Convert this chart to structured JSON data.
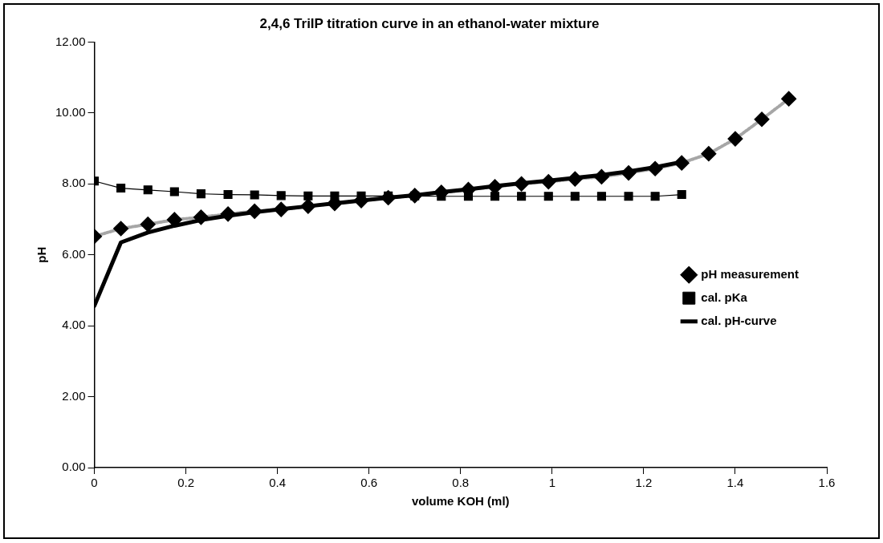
{
  "chart_data": {
    "type": "line",
    "title": "2,4,6 TriIP titration curve in an ethanol-water mixture",
    "xlabel": "volume KOH (ml)",
    "ylabel": "pH",
    "x": [
      0,
      0.058,
      0.117,
      0.175,
      0.233,
      0.292,
      0.35,
      0.408,
      0.467,
      0.525,
      0.583,
      0.642,
      0.7,
      0.758,
      0.817,
      0.875,
      0.933,
      0.992,
      1.05,
      1.108,
      1.167,
      1.225,
      1.283,
      1.342,
      1.4,
      1.458,
      1.517
    ],
    "series": [
      {
        "name": "pH measurement",
        "color": "#000000",
        "marker": "diamond",
        "line_style": "dotted",
        "values": [
          6.52,
          6.74,
          6.86,
          6.99,
          7.06,
          7.15,
          7.23,
          7.28,
          7.37,
          7.45,
          7.53,
          7.61,
          7.67,
          7.76,
          7.84,
          7.92,
          8.0,
          8.06,
          8.14,
          8.2,
          8.31,
          8.43,
          8.59,
          8.85,
          9.27,
          9.82,
          10.4
        ]
      },
      {
        "name": "cal. pKa",
        "color": "#000000",
        "marker": "square",
        "values": [
          8.08,
          7.88,
          7.83,
          7.78,
          7.72,
          7.7,
          7.69,
          7.67,
          7.66,
          7.66,
          7.66,
          7.66,
          7.66,
          7.65,
          7.65,
          7.65,
          7.65,
          7.65,
          7.65,
          7.65,
          7.65,
          7.65,
          7.7,
          null,
          null,
          null,
          null
        ]
      },
      {
        "name": "cal. pH-curve",
        "color": "#000000",
        "marker": "none",
        "values": [
          4.56,
          6.35,
          6.63,
          6.82,
          6.98,
          7.1,
          7.2,
          7.29,
          7.37,
          7.45,
          7.53,
          7.61,
          7.68,
          7.77,
          7.85,
          7.94,
          8.02,
          8.09,
          8.17,
          8.25,
          8.35,
          8.47,
          8.62,
          null,
          null,
          null,
          null
        ]
      }
    ],
    "xlim": [
      0,
      1.6
    ],
    "xticks": [
      0,
      0.2,
      0.4,
      0.6,
      0.8,
      1,
      1.2,
      1.4,
      1.6
    ],
    "ylim": [
      0,
      12
    ],
    "yticks": [
      {
        "value": 0,
        "label": "0.00"
      },
      {
        "value": 2,
        "label": "2.00"
      },
      {
        "value": 4,
        "label": "4.00"
      },
      {
        "value": 6,
        "label": "6.00"
      },
      {
        "value": 8,
        "label": "8.00"
      },
      {
        "value": 10,
        "label": "10.00"
      },
      {
        "value": 12,
        "label": "12.00"
      }
    ],
    "grid": false,
    "legend": "right"
  }
}
